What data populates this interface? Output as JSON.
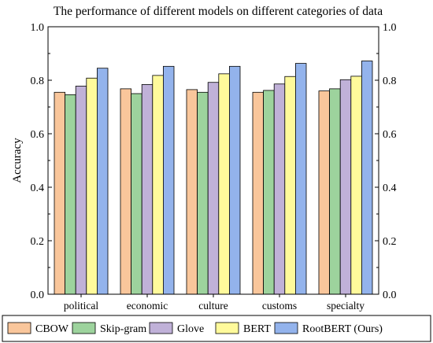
{
  "chart_data": {
    "type": "bar",
    "title": "The performance of different models on different categories of data",
    "xlabel": "",
    "ylabel": "Accuracy",
    "ylim": [
      0.0,
      1.0
    ],
    "yticks": [
      "0.0",
      "0.2",
      "0.4",
      "0.6",
      "0.8",
      "1.0"
    ],
    "secondary_axis_right": true,
    "grid": false,
    "legend_position": "bottom",
    "categories": [
      "political",
      "economic",
      "culture",
      "customs",
      "specialty"
    ],
    "series": [
      {
        "name": "CBOW",
        "color": "#f9c69b",
        "values": [
          0.755,
          0.768,
          0.765,
          0.755,
          0.76
        ]
      },
      {
        "name": "Skip-gram",
        "color": "#9dd39d",
        "values": [
          0.746,
          0.75,
          0.755,
          0.762,
          0.768
        ]
      },
      {
        "name": "Glove",
        "color": "#c0b1d8",
        "values": [
          0.778,
          0.784,
          0.792,
          0.786,
          0.802
        ]
      },
      {
        "name": "BERT",
        "color": "#fffa9b",
        "values": [
          0.808,
          0.818,
          0.824,
          0.814,
          0.815
        ]
      },
      {
        "name": "RootBERT (Ours)",
        "color": "#93b3ec",
        "values": [
          0.845,
          0.852,
          0.852,
          0.863,
          0.872
        ]
      }
    ]
  }
}
